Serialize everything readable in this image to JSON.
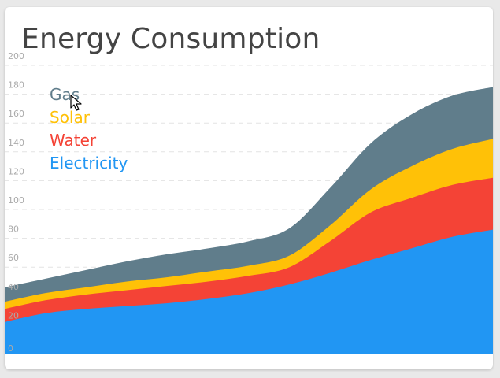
{
  "page": {
    "title": "Energy Consumption"
  },
  "colors": {
    "electricity": "#2196f3",
    "water": "#f44336",
    "solar": "#ffc107",
    "gas": "#607d8b",
    "grid": "#e3e3e3",
    "tick": "#aaaaaa"
  },
  "chart_data": {
    "type": "area",
    "stacked": true,
    "title": "Energy Consumption",
    "xlabel": "",
    "ylabel": "",
    "ylim": [
      0,
      200
    ],
    "yticks": [
      0,
      20,
      40,
      60,
      80,
      100,
      120,
      140,
      160,
      180,
      200
    ],
    "grid": true,
    "legend_position": "top-left",
    "x": [
      0,
      1,
      2,
      3,
      4,
      5,
      6,
      7,
      8,
      9,
      10,
      11,
      12
    ],
    "series": [
      {
        "name": "Electricity",
        "color": "#2196f3",
        "values": [
          22,
          28,
          31,
          33,
          35,
          38,
          42,
          48,
          56,
          65,
          73,
          81,
          86
        ]
      },
      {
        "name": "Water",
        "color": "#f44336",
        "values": [
          9,
          9,
          10,
          11,
          12,
          12,
          12,
          12,
          22,
          33,
          35,
          36,
          36
        ]
      },
      {
        "name": "Solar",
        "color": "#ffc107",
        "values": [
          5,
          5,
          5,
          6,
          6,
          7,
          7,
          8,
          11,
          16,
          22,
          25,
          27
        ]
      },
      {
        "name": "Gas",
        "color": "#607d8b",
        "values": [
          10,
          10,
          12,
          14,
          16,
          16,
          17,
          19,
          26,
          32,
          36,
          37,
          36
        ]
      }
    ]
  }
}
